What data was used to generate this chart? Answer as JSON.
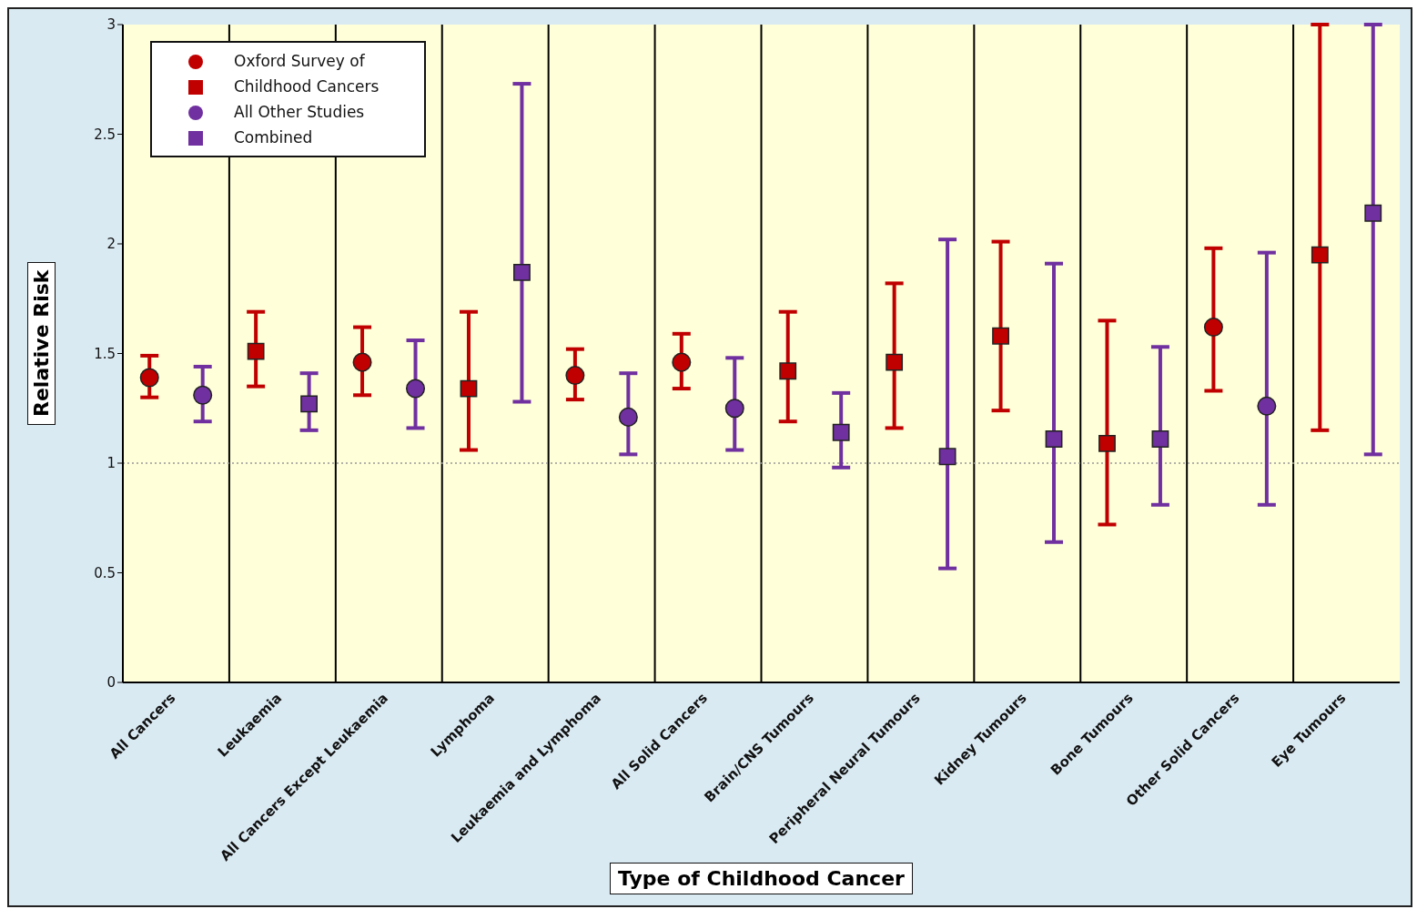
{
  "chart_data": {
    "type": "scatter",
    "xlabel": "Type of Childhood Cancer",
    "ylabel": "Relative Risk",
    "categories": [
      "All Cancers",
      "Leukaemia",
      "All Cancers Except Leukaemia",
      "Lymphoma",
      "Leukaemia and Lymphoma",
      "All Solid Cancers",
      "Brain/CNS Tumours",
      "Peripheral Neural Tumours",
      "Kidney Tumours",
      "Bone Tumours",
      "Other Solid Cancers",
      "Eye Tumours"
    ],
    "series": [
      {
        "name": "Oxford Survey of",
        "color": "#c00000",
        "marker": "circle",
        "values": [
          1.39,
          null,
          1.46,
          null,
          1.4,
          1.46,
          null,
          null,
          null,
          null,
          1.62,
          null
        ],
        "errors": [
          [
            1.3,
            1.49
          ],
          null,
          [
            1.31,
            1.62
          ],
          null,
          [
            1.29,
            1.52
          ],
          [
            1.34,
            1.59
          ],
          null,
          null,
          null,
          null,
          [
            1.33,
            1.98
          ],
          null
        ]
      },
      {
        "name": "Childhood Cancers",
        "color": "#c00000",
        "marker": "square",
        "values": [
          null,
          1.51,
          null,
          1.34,
          null,
          null,
          1.42,
          1.46,
          1.58,
          1.09,
          null,
          1.95
        ],
        "errors": [
          null,
          [
            1.35,
            1.69
          ],
          null,
          [
            1.06,
            1.69
          ],
          null,
          null,
          [
            1.19,
            1.69
          ],
          [
            1.16,
            1.82
          ],
          [
            1.24,
            2.01
          ],
          [
            0.72,
            1.65
          ],
          null,
          [
            1.15,
            3
          ]
        ]
      },
      {
        "name": "All Other Studies",
        "color": "#7030a0",
        "marker": "circle",
        "values": [
          1.31,
          null,
          1.34,
          null,
          1.21,
          1.25,
          null,
          null,
          null,
          null,
          1.26,
          null
        ],
        "errors": [
          [
            1.19,
            1.44
          ],
          null,
          [
            1.16,
            1.56
          ],
          null,
          [
            1.04,
            1.41
          ],
          [
            1.06,
            1.48
          ],
          null,
          null,
          null,
          null,
          [
            0.81,
            1.96
          ],
          null
        ]
      },
      {
        "name": "Combined",
        "color": "#7030a0",
        "marker": "square",
        "values": [
          null,
          1.27,
          null,
          1.87,
          null,
          null,
          1.14,
          1.03,
          1.11,
          1.11,
          null,
          2.14
        ],
        "errors": [
          null,
          [
            1.15,
            1.41
          ],
          null,
          [
            1.28,
            2.73
          ],
          null,
          null,
          [
            0.98,
            1.32
          ],
          [
            0.52,
            2.02
          ],
          [
            0.64,
            1.91
          ],
          [
            0.81,
            1.53
          ],
          null,
          [
            1.04,
            3
          ]
        ]
      }
    ],
    "ylim": [
      0,
      3
    ],
    "yticks": [
      0,
      0.5,
      1,
      1.5,
      2,
      2.5,
      3
    ],
    "grid": "x",
    "legend": "top left",
    "ref_lines": [
      {
        "axis": "y",
        "value": 1,
        "line_style": "dotted",
        "color": "#999999"
      }
    ]
  }
}
